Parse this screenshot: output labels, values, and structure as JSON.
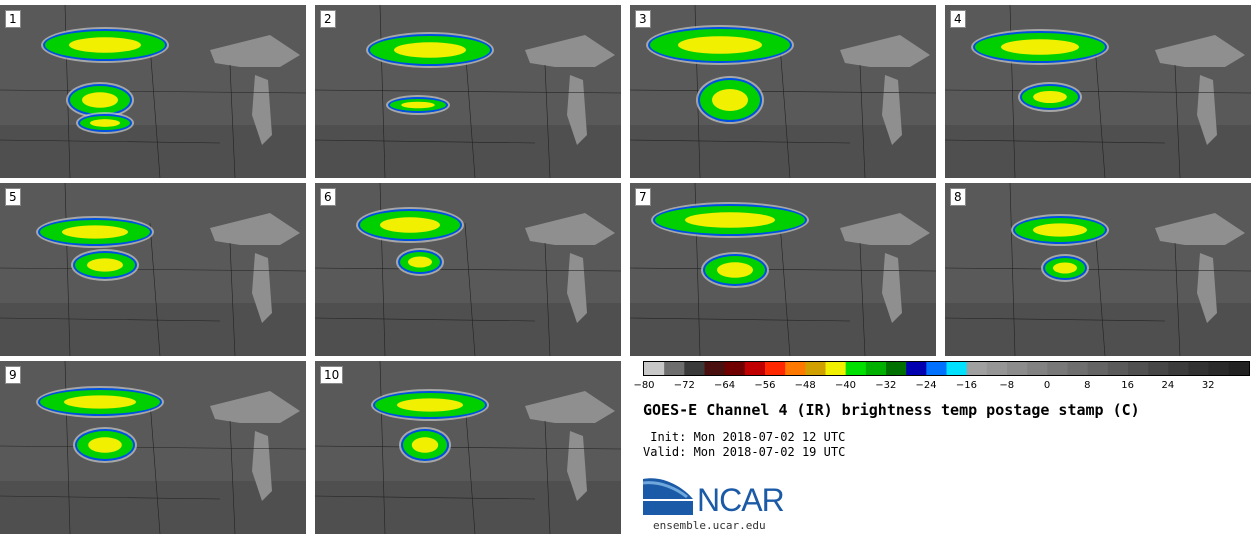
{
  "panels": [
    {
      "label": "1"
    },
    {
      "label": "2"
    },
    {
      "label": "3"
    },
    {
      "label": "4"
    },
    {
      "label": "5"
    },
    {
      "label": "6"
    },
    {
      "label": "7"
    },
    {
      "label": "8"
    },
    {
      "label": "9"
    },
    {
      "label": "10"
    }
  ],
  "colorbar": {
    "ticks": [
      "−80",
      "−72",
      "−64",
      "−56",
      "−48",
      "−40",
      "−32",
      "−24",
      "−16",
      "−8",
      "0",
      "8",
      "16",
      "24",
      "32"
    ],
    "colors": [
      "#c8c8c8",
      "#6e6e6e",
      "#3a3a3a",
      "#4a1010",
      "#700000",
      "#c00000",
      "#ff2800",
      "#ff7800",
      "#d0a000",
      "#f0f000",
      "#00e000",
      "#00b000",
      "#007000",
      "#0000b0",
      "#0070ff",
      "#00e0ff",
      "#a0a0a0",
      "#969696",
      "#8c8c8c",
      "#828282",
      "#787878",
      "#6e6e6e",
      "#646464",
      "#5a5a5a",
      "#505050",
      "#464646",
      "#3c3c3c",
      "#323232",
      "#2a2a2a",
      "#222222"
    ]
  },
  "title": "GOES-E Channel 4 (IR) brightness temp postage stamp (C)",
  "init": " Init: Mon 2018-07-02 12 UTC",
  "valid": "Valid: Mon 2018-07-02 19 UTC",
  "logo": {
    "text": "NCAR",
    "url": "ensemble.ucar.edu"
  }
}
